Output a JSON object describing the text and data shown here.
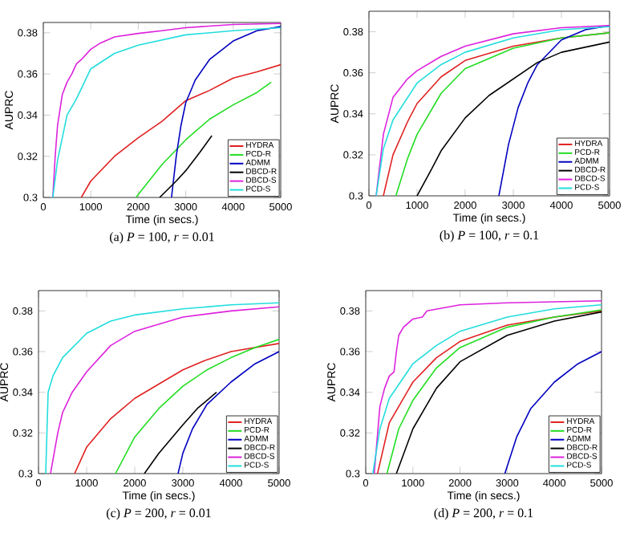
{
  "chart_data": [
    {
      "type": "line",
      "title": "(a) *P* = 100, *r* = 0.01",
      "xlabel": "Time (in secs.)",
      "ylabel": "AUPRC",
      "xlim": [
        0,
        5000
      ],
      "ylim": [
        0.3,
        0.385
      ],
      "xticks": [
        0,
        1000,
        2000,
        3000,
        4000,
        5000
      ],
      "yticks": [
        0.3,
        0.32,
        0.34,
        0.36,
        0.38
      ],
      "legend": "bottom right",
      "series": [
        {
          "name": "HYDRA",
          "color": "#e02020",
          "x": [
            800,
            1000,
            1500,
            2000,
            2500,
            3000,
            3500,
            4000,
            4500,
            5000
          ],
          "values": [
            0.3,
            0.308,
            0.32,
            0.329,
            0.337,
            0.347,
            0.352,
            0.358,
            0.361,
            0.3645
          ]
        },
        {
          "name": "PCD-R",
          "color": "#22dd22",
          "x": [
            1950,
            2500,
            3000,
            3500,
            4000,
            4500,
            4800
          ],
          "values": [
            0.3,
            0.316,
            0.328,
            0.338,
            0.345,
            0.351,
            0.356
          ]
        },
        {
          "name": "ADMM",
          "color": "#0000c0",
          "x": [
            2700,
            2800,
            2900,
            3000,
            3200,
            3500,
            4000,
            4500,
            5000
          ],
          "values": [
            0.3,
            0.32,
            0.335,
            0.346,
            0.357,
            0.367,
            0.376,
            0.381,
            0.383
          ]
        },
        {
          "name": "DBCD-R",
          "color": "#000000",
          "x": [
            2450,
            2800,
            3000,
            3300,
            3550
          ],
          "values": [
            0.3,
            0.308,
            0.313,
            0.322,
            0.33
          ]
        },
        {
          "name": "DBCD-S",
          "color": "#dd22dd",
          "x": [
            200,
            250,
            300,
            400,
            500,
            600,
            700,
            800,
            1000,
            1200,
            1500,
            2000,
            2500,
            3000,
            4000,
            5000
          ],
          "values": [
            0.3,
            0.32,
            0.335,
            0.35,
            0.356,
            0.36,
            0.365,
            0.367,
            0.372,
            0.375,
            0.378,
            0.3797,
            0.381,
            0.3825,
            0.384,
            0.3845
          ]
        },
        {
          "name": "PCD-S",
          "color": "#22dddd",
          "x": [
            200,
            300,
            500,
            700,
            1000,
            1500,
            2000,
            3000,
            4000,
            5000
          ],
          "values": [
            0.3,
            0.318,
            0.34,
            0.348,
            0.3625,
            0.37,
            0.374,
            0.379,
            0.381,
            0.3825
          ]
        }
      ]
    },
    {
      "type": "line",
      "title": "(b) *P* = 100, *r* = 0.1",
      "xlabel": "Time (in secs.)",
      "ylabel": "AUPRC",
      "xlim": [
        0,
        5000
      ],
      "ylim": [
        0.3,
        0.39
      ],
      "xticks": [
        0,
        1000,
        2000,
        3000,
        4000,
        5000
      ],
      "yticks": [
        0.3,
        0.32,
        0.34,
        0.36,
        0.38
      ],
      "legend": "bottom right",
      "series": [
        {
          "name": "HYDRA",
          "color": "#e02020",
          "x": [
            300,
            500,
            800,
            1000,
            1500,
            2000,
            3000,
            4000,
            5000
          ],
          "values": [
            0.3,
            0.32,
            0.336,
            0.345,
            0.358,
            0.366,
            0.373,
            0.377,
            0.3795
          ]
        },
        {
          "name": "PCD-R",
          "color": "#22dd22",
          "x": [
            560,
            800,
            1000,
            1500,
            2000,
            3000,
            4000,
            5000
          ],
          "values": [
            0.3,
            0.318,
            0.33,
            0.35,
            0.362,
            0.372,
            0.377,
            0.3795
          ]
        },
        {
          "name": "ADMM",
          "color": "#0000c0",
          "x": [
            2700,
            2900,
            3100,
            3300,
            3500,
            4000,
            4500,
            5000
          ],
          "values": [
            0.3,
            0.325,
            0.343,
            0.355,
            0.364,
            0.376,
            0.381,
            0.383
          ]
        },
        {
          "name": "DBCD-R",
          "color": "#000000",
          "x": [
            1000,
            1300,
            1500,
            2000,
            2500,
            3000,
            3500,
            4000,
            5000
          ],
          "values": [
            0.3,
            0.313,
            0.322,
            0.338,
            0.349,
            0.357,
            0.365,
            0.37,
            0.375
          ]
        },
        {
          "name": "DBCD-S",
          "color": "#dd22dd",
          "x": [
            150,
            300,
            500,
            800,
            1000,
            1500,
            2000,
            3000,
            4000,
            5000
          ],
          "values": [
            0.3,
            0.33,
            0.348,
            0.357,
            0.361,
            0.368,
            0.373,
            0.379,
            0.382,
            0.383
          ]
        },
        {
          "name": "PCD-S",
          "color": "#22dddd",
          "x": [
            150,
            300,
            500,
            1000,
            1500,
            2000,
            3000,
            4000,
            5000
          ],
          "values": [
            0.3,
            0.323,
            0.337,
            0.355,
            0.364,
            0.37,
            0.377,
            0.381,
            0.3825
          ]
        }
      ]
    },
    {
      "type": "line",
      "title": "(c) *P* = 200, *r* = 0.01",
      "xlabel": "Time (in secs.)",
      "ylabel": "AUPRC",
      "xlim": [
        0,
        5000
      ],
      "ylim": [
        0.3,
        0.39
      ],
      "xticks": [
        0,
        1000,
        2000,
        3000,
        4000,
        5000
      ],
      "yticks": [
        0.3,
        0.32,
        0.34,
        0.36,
        0.38
      ],
      "legend": "bottom right",
      "series": [
        {
          "name": "HYDRA",
          "color": "#e02020",
          "x": [
            750,
            1000,
            1500,
            2000,
            2500,
            3000,
            3500,
            4000,
            5000
          ],
          "values": [
            0.3,
            0.313,
            0.327,
            0.337,
            0.344,
            0.351,
            0.356,
            0.36,
            0.364
          ]
        },
        {
          "name": "PCD-R",
          "color": "#22dd22",
          "x": [
            1600,
            2000,
            2500,
            3000,
            3500,
            4000,
            4500,
            5000
          ],
          "values": [
            0.3,
            0.318,
            0.332,
            0.343,
            0.351,
            0.357,
            0.362,
            0.366
          ]
        },
        {
          "name": "ADMM",
          "color": "#0000c0",
          "x": [
            2900,
            3000,
            3200,
            3500,
            4000,
            4500,
            5000
          ],
          "values": [
            0.3,
            0.31,
            0.322,
            0.334,
            0.345,
            0.354,
            0.36
          ]
        },
        {
          "name": "DBCD-R",
          "color": "#000000",
          "x": [
            2200,
            2500,
            3000,
            3300,
            3700
          ],
          "values": [
            0.3,
            0.31,
            0.324,
            0.332,
            0.34
          ]
        },
        {
          "name": "DBCD-S",
          "color": "#dd22dd",
          "x": [
            250,
            400,
            500,
            700,
            1000,
            1500,
            2000,
            3000,
            4000,
            5000
          ],
          "values": [
            0.3,
            0.32,
            0.33,
            0.34,
            0.35,
            0.363,
            0.37,
            0.377,
            0.38,
            0.382
          ]
        },
        {
          "name": "PCD-S",
          "color": "#22dddd",
          "x": [
            150,
            200,
            300,
            500,
            1000,
            1500,
            2000,
            3000,
            4000,
            5000
          ],
          "values": [
            0.3,
            0.34,
            0.348,
            0.357,
            0.369,
            0.375,
            0.378,
            0.381,
            0.383,
            0.384
          ]
        }
      ]
    },
    {
      "type": "line",
      "title": "(d) *P* = 200, *r* = 0.1",
      "xlabel": "Time (in secs.)",
      "ylabel": "AUPRC",
      "xlim": [
        0,
        5000
      ],
      "ylim": [
        0.3,
        0.39
      ],
      "xticks": [
        0,
        1000,
        2000,
        3000,
        4000,
        5000
      ],
      "yticks": [
        0.3,
        0.32,
        0.34,
        0.36,
        0.38
      ],
      "legend": "bottom right",
      "series": [
        {
          "name": "HYDRA",
          "color": "#e02020",
          "x": [
            250,
            500,
            1000,
            1500,
            2000,
            3000,
            4000,
            5000
          ],
          "values": [
            0.3,
            0.325,
            0.345,
            0.357,
            0.365,
            0.373,
            0.377,
            0.38
          ]
        },
        {
          "name": "PCD-R",
          "color": "#22dd22",
          "x": [
            450,
            700,
            1000,
            1500,
            2000,
            3000,
            4000,
            5000
          ],
          "values": [
            0.3,
            0.322,
            0.336,
            0.352,
            0.362,
            0.372,
            0.377,
            0.3805
          ]
        },
        {
          "name": "ADMM",
          "color": "#0000c0",
          "x": [
            2950,
            3200,
            3500,
            4000,
            4500,
            5000
          ],
          "values": [
            0.3,
            0.318,
            0.332,
            0.345,
            0.354,
            0.36
          ]
        },
        {
          "name": "DBCD-R",
          "color": "#000000",
          "x": [
            650,
            1000,
            1500,
            2000,
            3000,
            4000,
            5000
          ],
          "values": [
            0.3,
            0.322,
            0.342,
            0.355,
            0.368,
            0.375,
            0.3795
          ]
        },
        {
          "name": "DBCD-S",
          "color": "#dd22dd",
          "x": [
            180,
            300,
            400,
            500,
            600,
            650,
            700,
            800,
            1000,
            1200,
            1300,
            2000,
            3000,
            5000
          ],
          "values": [
            0.3,
            0.333,
            0.342,
            0.348,
            0.35,
            0.36,
            0.368,
            0.372,
            0.376,
            0.377,
            0.38,
            0.383,
            0.384,
            0.385
          ]
        },
        {
          "name": "PCD-S",
          "color": "#22dddd",
          "x": [
            150,
            300,
            500,
            1000,
            1500,
            2000,
            3000,
            4000,
            5000
          ],
          "values": [
            0.3,
            0.322,
            0.337,
            0.354,
            0.363,
            0.37,
            0.377,
            0.381,
            0.383
          ]
        }
      ]
    }
  ]
}
